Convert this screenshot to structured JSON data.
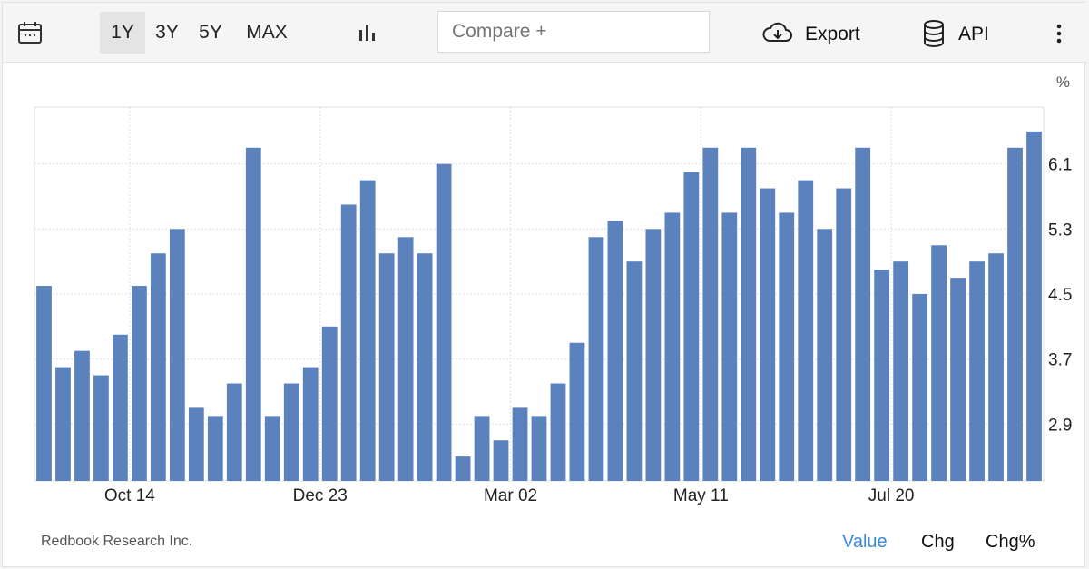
{
  "toolbar": {
    "calendar_icon": "calendar-icon",
    "ranges": [
      "1Y",
      "3Y",
      "5Y",
      "MAX"
    ],
    "active_range": "1Y",
    "chart_type_icon": "bar-chart-icon",
    "compare_placeholder": "Compare +",
    "export_icon": "cloud-download-icon",
    "export_label": "Export",
    "api_icon": "database-icon",
    "api_label": "API",
    "more_icon": "more-vertical-icon"
  },
  "footer": {
    "source": "Redbook Research Inc.",
    "tabs": [
      "Value",
      "Chg",
      "Chg%"
    ],
    "active_tab": "Value"
  },
  "colors": {
    "bar": "#5b82bd",
    "active_tab": "#3b8ad9",
    "grid": "#e1e1e1"
  },
  "chart_data": {
    "type": "bar",
    "unit": "%",
    "ylim": [
      2.2,
      6.8
    ],
    "yticks": [
      2.9,
      3.7,
      4.5,
      5.3,
      6.1
    ],
    "ytick_labels": [
      "2.9",
      "3.7",
      "4.5",
      "5.3",
      "6.1"
    ],
    "xtick_labels": [
      "Oct 14",
      "Dec 23",
      "Mar 02",
      "May 11",
      "Jul 20"
    ],
    "xtick_bar_index": [
      4.5,
      14.5,
      24.5,
      34.5,
      44.5
    ],
    "grid": true,
    "values": [
      4.6,
      3.6,
      3.8,
      3.5,
      4.0,
      4.6,
      5.0,
      5.3,
      3.1,
      3.0,
      3.4,
      6.3,
      3.0,
      3.4,
      3.6,
      4.1,
      5.6,
      5.9,
      5.0,
      5.2,
      5.0,
      6.1,
      2.5,
      3.0,
      2.7,
      3.1,
      3.0,
      3.4,
      3.9,
      5.2,
      5.4,
      4.9,
      5.3,
      5.5,
      6.0,
      6.3,
      5.5,
      6.3,
      5.8,
      5.5,
      5.9,
      5.3,
      5.8,
      6.3,
      4.8,
      4.9,
      4.5,
      5.1,
      4.7,
      4.9,
      5.0,
      6.3,
      6.5
    ]
  }
}
